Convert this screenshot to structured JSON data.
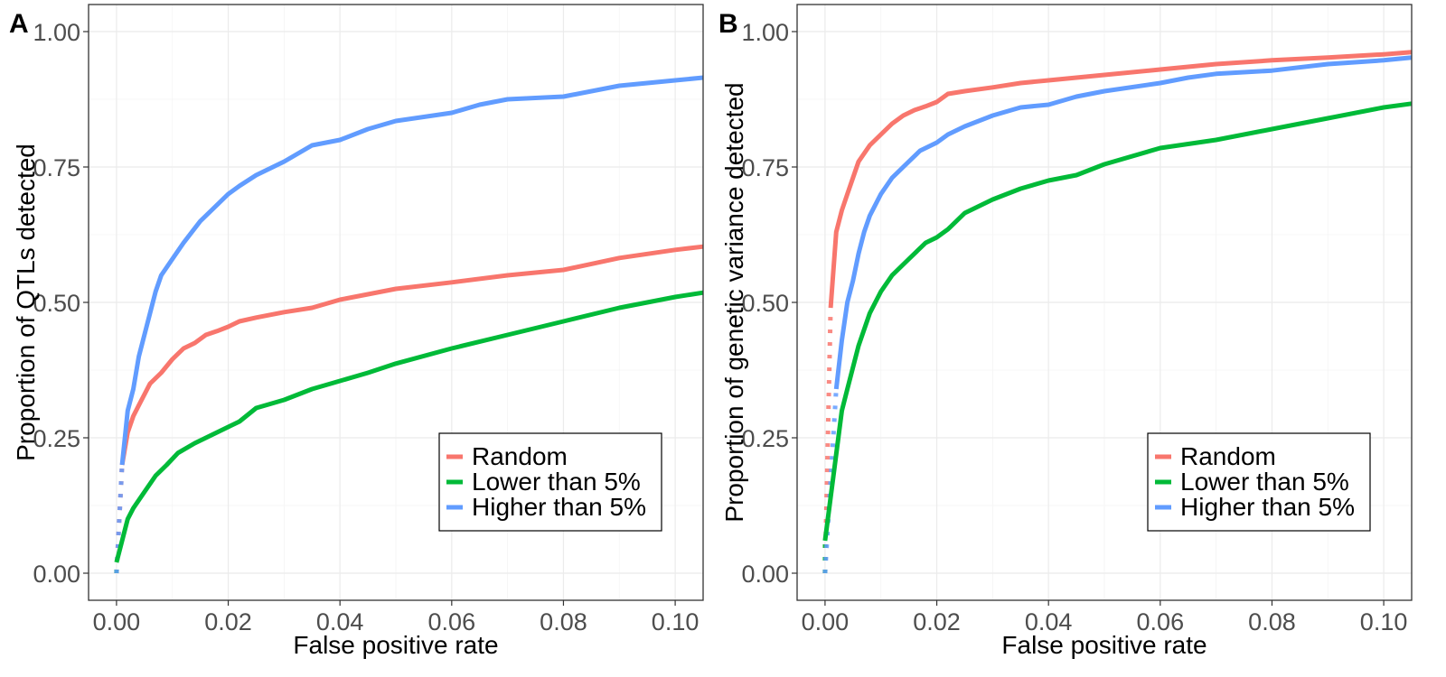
{
  "chart_data": [
    {
      "panel_tag": "A",
      "type": "line",
      "xlabel": "False positive rate",
      "ylabel": "Proportion of QTLs detected",
      "xlim": [
        -0.005,
        0.105
      ],
      "ylim": [
        -0.05,
        1.05
      ],
      "x_ticks": [
        "0.00",
        "0.02",
        "0.04",
        "0.06",
        "0.08",
        "0.10"
      ],
      "y_ticks": [
        "0.00",
        "0.25",
        "0.50",
        "0.75",
        "1.00"
      ],
      "grid": true,
      "legend_position": "bottom-right",
      "series": [
        {
          "name": "Random",
          "color": "#F8766D",
          "dotted_segment": [
            [
              0,
              0
            ],
            [
              0.001,
              0.2
            ]
          ],
          "values": [
            [
              0.001,
              0.2
            ],
            [
              0.002,
              0.26
            ],
            [
              0.003,
              0.29
            ],
            [
              0.004,
              0.31
            ],
            [
              0.005,
              0.33
            ],
            [
              0.006,
              0.35
            ],
            [
              0.008,
              0.37
            ],
            [
              0.01,
              0.395
            ],
            [
              0.012,
              0.415
            ],
            [
              0.014,
              0.425
            ],
            [
              0.016,
              0.44
            ],
            [
              0.018,
              0.447
            ],
            [
              0.02,
              0.455
            ],
            [
              0.022,
              0.465
            ],
            [
              0.025,
              0.472
            ],
            [
              0.03,
              0.482
            ],
            [
              0.035,
              0.49
            ],
            [
              0.04,
              0.505
            ],
            [
              0.045,
              0.515
            ],
            [
              0.05,
              0.525
            ],
            [
              0.06,
              0.537
            ],
            [
              0.07,
              0.55
            ],
            [
              0.08,
              0.56
            ],
            [
              0.09,
              0.582
            ],
            [
              0.1,
              0.597
            ],
            [
              0.105,
              0.603
            ]
          ]
        },
        {
          "name": "Lower than 5%",
          "color": "#00BA38",
          "dotted_segment": [
            [
              0,
              0
            ],
            [
              0,
              0.02
            ]
          ],
          "values": [
            [
              0,
              0.02
            ],
            [
              0.001,
              0.06
            ],
            [
              0.002,
              0.1
            ],
            [
              0.003,
              0.12
            ],
            [
              0.005,
              0.15
            ],
            [
              0.007,
              0.18
            ],
            [
              0.009,
              0.2
            ],
            [
              0.011,
              0.222
            ],
            [
              0.014,
              0.24
            ],
            [
              0.017,
              0.255
            ],
            [
              0.02,
              0.27
            ],
            [
              0.022,
              0.28
            ],
            [
              0.025,
              0.305
            ],
            [
              0.03,
              0.32
            ],
            [
              0.035,
              0.34
            ],
            [
              0.04,
              0.355
            ],
            [
              0.045,
              0.37
            ],
            [
              0.05,
              0.387
            ],
            [
              0.06,
              0.415
            ],
            [
              0.07,
              0.44
            ],
            [
              0.08,
              0.465
            ],
            [
              0.09,
              0.49
            ],
            [
              0.1,
              0.51
            ],
            [
              0.105,
              0.518
            ]
          ]
        },
        {
          "name": "Higher than 5%",
          "color": "#619CFF",
          "dotted_segment": [
            [
              0,
              0
            ],
            [
              0.001,
              0.2
            ]
          ],
          "values": [
            [
              0.001,
              0.2
            ],
            [
              0.002,
              0.3
            ],
            [
              0.003,
              0.34
            ],
            [
              0.004,
              0.4
            ],
            [
              0.005,
              0.44
            ],
            [
              0.006,
              0.48
            ],
            [
              0.007,
              0.52
            ],
            [
              0.008,
              0.55
            ],
            [
              0.01,
              0.58
            ],
            [
              0.012,
              0.61
            ],
            [
              0.015,
              0.65
            ],
            [
              0.017,
              0.67
            ],
            [
              0.02,
              0.7
            ],
            [
              0.022,
              0.715
            ],
            [
              0.025,
              0.735
            ],
            [
              0.03,
              0.76
            ],
            [
              0.035,
              0.79
            ],
            [
              0.04,
              0.8
            ],
            [
              0.045,
              0.82
            ],
            [
              0.05,
              0.835
            ],
            [
              0.06,
              0.85
            ],
            [
              0.065,
              0.865
            ],
            [
              0.07,
              0.875
            ],
            [
              0.08,
              0.88
            ],
            [
              0.09,
              0.9
            ],
            [
              0.1,
              0.91
            ],
            [
              0.105,
              0.915
            ]
          ]
        }
      ]
    },
    {
      "panel_tag": "B",
      "type": "line",
      "xlabel": "False positive rate",
      "ylabel": "Proportion of genetic variance detected",
      "xlim": [
        -0.005,
        0.105
      ],
      "ylim": [
        -0.05,
        1.05
      ],
      "x_ticks": [
        "0.00",
        "0.02",
        "0.04",
        "0.06",
        "0.08",
        "0.10"
      ],
      "y_ticks": [
        "0.00",
        "0.25",
        "0.50",
        "0.75",
        "1.00"
      ],
      "grid": true,
      "legend_position": "bottom-right",
      "series": [
        {
          "name": "Random",
          "color": "#F8766D",
          "dotted_segment": [
            [
              0,
              0
            ],
            [
              0.001,
              0.49
            ]
          ],
          "values": [
            [
              0.001,
              0.49
            ],
            [
              0.002,
              0.63
            ],
            [
              0.003,
              0.67
            ],
            [
              0.004,
              0.7
            ],
            [
              0.005,
              0.73
            ],
            [
              0.006,
              0.76
            ],
            [
              0.008,
              0.79
            ],
            [
              0.01,
              0.81
            ],
            [
              0.012,
              0.83
            ],
            [
              0.014,
              0.845
            ],
            [
              0.016,
              0.855
            ],
            [
              0.018,
              0.862
            ],
            [
              0.02,
              0.87
            ],
            [
              0.022,
              0.885
            ],
            [
              0.025,
              0.89
            ],
            [
              0.03,
              0.897
            ],
            [
              0.035,
              0.905
            ],
            [
              0.04,
              0.91
            ],
            [
              0.05,
              0.92
            ],
            [
              0.06,
              0.93
            ],
            [
              0.07,
              0.94
            ],
            [
              0.08,
              0.947
            ],
            [
              0.09,
              0.952
            ],
            [
              0.1,
              0.958
            ],
            [
              0.105,
              0.962
            ]
          ]
        },
        {
          "name": "Lower than 5%",
          "color": "#00BA38",
          "dotted_segment": [
            [
              0,
              0
            ],
            [
              0,
              0.06
            ]
          ],
          "values": [
            [
              0,
              0.06
            ],
            [
              0.001,
              0.14
            ],
            [
              0.002,
              0.22
            ],
            [
              0.003,
              0.3
            ],
            [
              0.004,
              0.34
            ],
            [
              0.005,
              0.38
            ],
            [
              0.006,
              0.42
            ],
            [
              0.008,
              0.48
            ],
            [
              0.01,
              0.52
            ],
            [
              0.012,
              0.55
            ],
            [
              0.015,
              0.58
            ],
            [
              0.018,
              0.61
            ],
            [
              0.02,
              0.62
            ],
            [
              0.022,
              0.635
            ],
            [
              0.025,
              0.665
            ],
            [
              0.03,
              0.69
            ],
            [
              0.035,
              0.71
            ],
            [
              0.04,
              0.725
            ],
            [
              0.045,
              0.735
            ],
            [
              0.05,
              0.755
            ],
            [
              0.06,
              0.785
            ],
            [
              0.07,
              0.8
            ],
            [
              0.08,
              0.82
            ],
            [
              0.09,
              0.84
            ],
            [
              0.1,
              0.86
            ],
            [
              0.105,
              0.867
            ]
          ]
        },
        {
          "name": "Higher than 5%",
          "color": "#619CFF",
          "dotted_segment": [
            [
              0,
              0
            ],
            [
              0.002,
              0.34
            ]
          ],
          "values": [
            [
              0.002,
              0.34
            ],
            [
              0.003,
              0.43
            ],
            [
              0.004,
              0.5
            ],
            [
              0.005,
              0.54
            ],
            [
              0.006,
              0.59
            ],
            [
              0.007,
              0.63
            ],
            [
              0.008,
              0.66
            ],
            [
              0.01,
              0.7
            ],
            [
              0.012,
              0.73
            ],
            [
              0.015,
              0.76
            ],
            [
              0.017,
              0.78
            ],
            [
              0.02,
              0.795
            ],
            [
              0.022,
              0.81
            ],
            [
              0.025,
              0.825
            ],
            [
              0.03,
              0.845
            ],
            [
              0.035,
              0.86
            ],
            [
              0.04,
              0.865
            ],
            [
              0.045,
              0.88
            ],
            [
              0.05,
              0.89
            ],
            [
              0.06,
              0.905
            ],
            [
              0.065,
              0.915
            ],
            [
              0.07,
              0.922
            ],
            [
              0.08,
              0.928
            ],
            [
              0.09,
              0.94
            ],
            [
              0.1,
              0.947
            ],
            [
              0.105,
              0.952
            ]
          ]
        }
      ]
    }
  ]
}
